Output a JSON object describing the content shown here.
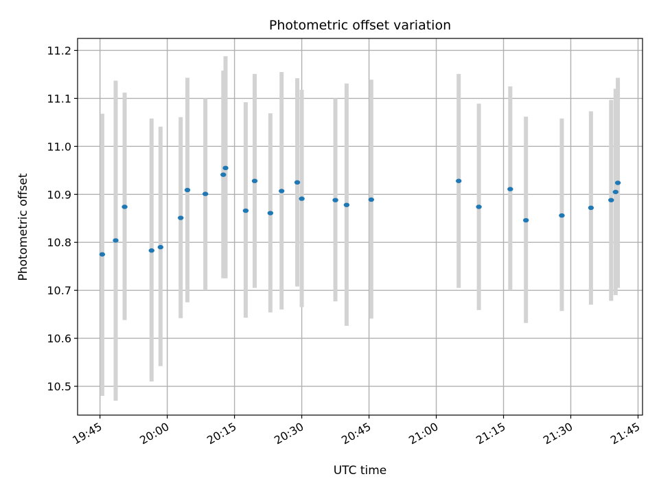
{
  "chart_data": {
    "type": "scatter",
    "title": "Photometric offset variation",
    "xlabel": "UTC time",
    "ylabel": "Photometric offset",
    "x_axis_type": "time",
    "xlim": [
      "19:40",
      "21:46"
    ],
    "ylim": [
      10.44,
      11.225
    ],
    "grid": true,
    "x_ticks": [
      "19:45",
      "20:00",
      "20:15",
      "20:30",
      "20:45",
      "21:00",
      "21:15",
      "21:30",
      "21:45"
    ],
    "y_ticks": [
      "10.5",
      "10.6",
      "10.7",
      "10.8",
      "10.9",
      "11.0",
      "11.1",
      "11.2"
    ],
    "colors": {
      "point": "#1f77b4",
      "errorbar": "#d3d3d3",
      "grid": "#b0b0b0"
    },
    "points": [
      {
        "x": "19:45:30",
        "y": 10.775,
        "ylow": 10.48,
        "yhigh": 11.068
      },
      {
        "x": "19:48:30",
        "y": 10.804,
        "ylow": 10.47,
        "yhigh": 11.137
      },
      {
        "x": "19:50:30",
        "y": 10.874,
        "ylow": 10.638,
        "yhigh": 11.112
      },
      {
        "x": "19:56:30",
        "y": 10.783,
        "ylow": 10.51,
        "yhigh": 11.058
      },
      {
        "x": "19:58:30",
        "y": 10.79,
        "ylow": 10.542,
        "yhigh": 11.041
      },
      {
        "x": "20:03:00",
        "y": 10.851,
        "ylow": 10.642,
        "yhigh": 11.061
      },
      {
        "x": "20:04:30",
        "y": 10.909,
        "ylow": 10.675,
        "yhigh": 11.143
      },
      {
        "x": "20:08:30",
        "y": 10.901,
        "ylow": 10.7,
        "yhigh": 11.1
      },
      {
        "x": "20:12:30",
        "y": 10.941,
        "ylow": 10.725,
        "yhigh": 11.158
      },
      {
        "x": "20:13:00",
        "y": 10.955,
        "ylow": 10.725,
        "yhigh": 11.188
      },
      {
        "x": "20:17:30",
        "y": 10.866,
        "ylow": 10.643,
        "yhigh": 11.092
      },
      {
        "x": "20:19:30",
        "y": 10.928,
        "ylow": 10.705,
        "yhigh": 11.151
      },
      {
        "x": "20:23:00",
        "y": 10.861,
        "ylow": 10.654,
        "yhigh": 11.069
      },
      {
        "x": "20:25:30",
        "y": 10.907,
        "ylow": 10.66,
        "yhigh": 11.155
      },
      {
        "x": "20:29:00",
        "y": 10.925,
        "ylow": 10.708,
        "yhigh": 11.142
      },
      {
        "x": "20:30:00",
        "y": 10.891,
        "ylow": 10.665,
        "yhigh": 11.118
      },
      {
        "x": "20:37:30",
        "y": 10.888,
        "ylow": 10.677,
        "yhigh": 11.1
      },
      {
        "x": "20:40:00",
        "y": 10.878,
        "ylow": 10.626,
        "yhigh": 11.131
      },
      {
        "x": "20:45:30",
        "y": 10.889,
        "ylow": 10.641,
        "yhigh": 11.139
      },
      {
        "x": "21:05:00",
        "y": 10.928,
        "ylow": 10.705,
        "yhigh": 11.151
      },
      {
        "x": "21:09:30",
        "y": 10.874,
        "ylow": 10.659,
        "yhigh": 11.089
      },
      {
        "x": "21:16:30",
        "y": 10.911,
        "ylow": 10.7,
        "yhigh": 11.125
      },
      {
        "x": "21:20:00",
        "y": 10.846,
        "ylow": 10.632,
        "yhigh": 11.062
      },
      {
        "x": "21:28:00",
        "y": 10.856,
        "ylow": 10.657,
        "yhigh": 11.058
      },
      {
        "x": "21:34:30",
        "y": 10.872,
        "ylow": 10.67,
        "yhigh": 11.073
      },
      {
        "x": "21:39:00",
        "y": 10.888,
        "ylow": 10.678,
        "yhigh": 11.097
      },
      {
        "x": "21:40:00",
        "y": 10.905,
        "ylow": 10.69,
        "yhigh": 11.12
      },
      {
        "x": "21:40:30",
        "y": 10.924,
        "ylow": 10.705,
        "yhigh": 11.143
      }
    ]
  }
}
